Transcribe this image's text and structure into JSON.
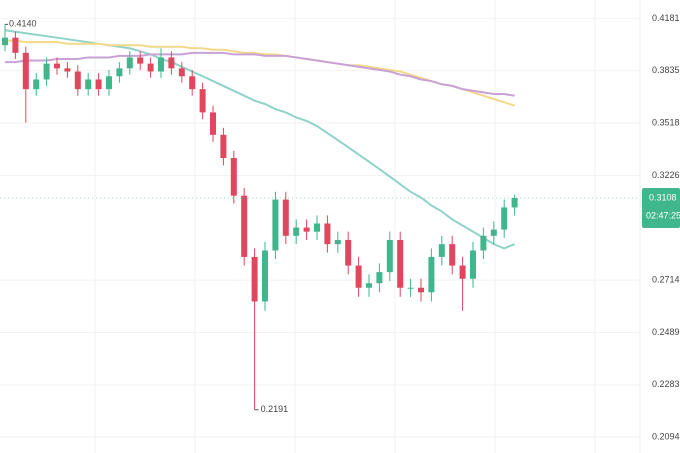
{
  "chart_data": {
    "type": "candlestick",
    "log_scale": true,
    "grid": true,
    "up_color": "#3fb68b",
    "down_color": "#e0465e",
    "ylim": [
      0.204,
      0.431
    ],
    "yticks": [
      0.4181,
      0.3835,
      0.3518,
      0.3226,
      0.2714,
      0.2489,
      0.2283,
      0.2094
    ],
    "open": [
      0.4,
      0.405,
      0.395,
      0.372,
      0.378,
      0.388,
      0.385,
      0.383,
      0.372,
      0.378,
      0.372,
      0.38,
      0.385,
      0.392,
      0.388,
      0.383,
      0.392,
      0.385,
      0.38,
      0.372,
      0.358,
      0.345,
      0.332,
      0.312,
      0.282,
      0.262,
      0.285,
      0.31,
      0.292,
      0.296,
      0.294,
      0.298,
      0.288,
      0.29,
      0.278,
      0.268,
      0.27,
      0.275,
      0.29,
      0.268,
      0.268,
      0.266,
      0.282,
      0.288,
      0.278,
      0.272,
      0.285,
      0.292,
      0.295,
      0.306
    ],
    "high": [
      0.414,
      0.409,
      0.399,
      0.382,
      0.392,
      0.392,
      0.389,
      0.387,
      0.382,
      0.382,
      0.384,
      0.389,
      0.396,
      0.396,
      0.392,
      0.398,
      0.396,
      0.389,
      0.384,
      0.376,
      0.362,
      0.349,
      0.336,
      0.316,
      0.286,
      0.289,
      0.314,
      0.314,
      0.3,
      0.3,
      0.302,
      0.302,
      0.294,
      0.294,
      0.282,
      0.274,
      0.279,
      0.294,
      0.294,
      0.272,
      0.272,
      0.286,
      0.292,
      0.292,
      0.282,
      0.289,
      0.296,
      0.299,
      0.31,
      0.3125
    ],
    "low": [
      0.396,
      0.391,
      0.352,
      0.368,
      0.374,
      0.381,
      0.379,
      0.368,
      0.368,
      0.368,
      0.368,
      0.376,
      0.381,
      0.384,
      0.379,
      0.379,
      0.381,
      0.376,
      0.368,
      0.354,
      0.341,
      0.328,
      0.308,
      0.278,
      0.2191,
      0.258,
      0.281,
      0.288,
      0.288,
      0.29,
      0.29,
      0.284,
      0.284,
      0.274,
      0.264,
      0.264,
      0.266,
      0.271,
      0.264,
      0.264,
      0.262,
      0.262,
      0.278,
      0.274,
      0.258,
      0.268,
      0.281,
      0.288,
      0.291,
      0.302
    ],
    "close": [
      0.405,
      0.395,
      0.372,
      0.378,
      0.388,
      0.385,
      0.383,
      0.372,
      0.378,
      0.372,
      0.38,
      0.385,
      0.392,
      0.388,
      0.383,
      0.392,
      0.385,
      0.38,
      0.372,
      0.358,
      0.345,
      0.332,
      0.312,
      0.282,
      0.262,
      0.285,
      0.31,
      0.292,
      0.296,
      0.294,
      0.298,
      0.288,
      0.29,
      0.278,
      0.268,
      0.27,
      0.275,
      0.29,
      0.268,
      0.268,
      0.266,
      0.282,
      0.288,
      0.278,
      0.272,
      0.285,
      0.292,
      0.295,
      0.306,
      0.3108
    ],
    "series": [
      {
        "color": "#8fd3c8",
        "values": [
          0.41,
          0.409,
          0.408,
          0.407,
          0.406,
          0.405,
          0.404,
          0.403,
          0.402,
          0.401,
          0.4,
          0.399,
          0.398,
          0.396,
          0.394,
          0.391,
          0.389,
          0.386,
          0.383,
          0.38,
          0.377,
          0.374,
          0.371,
          0.368,
          0.365,
          0.363,
          0.36,
          0.358,
          0.355,
          0.353,
          0.35,
          0.346,
          0.342,
          0.338,
          0.334,
          0.33,
          0.326,
          0.322,
          0.318,
          0.314,
          0.311,
          0.307,
          0.304,
          0.3,
          0.297,
          0.294,
          0.291,
          0.288,
          0.286,
          0.288
        ]
      },
      {
        "color": "#f2d98a",
        "values": [
          0.403,
          0.403,
          0.402,
          0.402,
          0.402,
          0.402,
          0.401,
          0.401,
          0.401,
          0.401,
          0.4,
          0.4,
          0.4,
          0.4,
          0.399,
          0.399,
          0.399,
          0.399,
          0.398,
          0.398,
          0.397,
          0.397,
          0.396,
          0.395,
          0.395,
          0.394,
          0.394,
          0.393,
          0.392,
          0.391,
          0.39,
          0.389,
          0.388,
          0.387,
          0.387,
          0.386,
          0.385,
          0.384,
          0.383,
          0.381,
          0.379,
          0.377,
          0.375,
          0.374,
          0.372,
          0.37,
          0.368,
          0.366,
          0.364,
          0.362
        ]
      },
      {
        "color": "#c8a2d6",
        "values": [
          0.389,
          0.389,
          0.39,
          0.39,
          0.39,
          0.391,
          0.391,
          0.391,
          0.392,
          0.392,
          0.392,
          0.393,
          0.393,
          0.393,
          0.394,
          0.394,
          0.394,
          0.394,
          0.395,
          0.395,
          0.395,
          0.395,
          0.394,
          0.394,
          0.394,
          0.393,
          0.393,
          0.393,
          0.392,
          0.391,
          0.39,
          0.389,
          0.388,
          0.387,
          0.386,
          0.385,
          0.384,
          0.383,
          0.381,
          0.38,
          0.378,
          0.377,
          0.375,
          0.374,
          0.372,
          0.371,
          0.37,
          0.369,
          0.369,
          0.368
        ]
      }
    ],
    "high_label": {
      "value": 0.414,
      "label": "0.4140"
    },
    "low_label": 0.2191,
    "last_price": 0.3108,
    "countdown": "02:47:25"
  }
}
